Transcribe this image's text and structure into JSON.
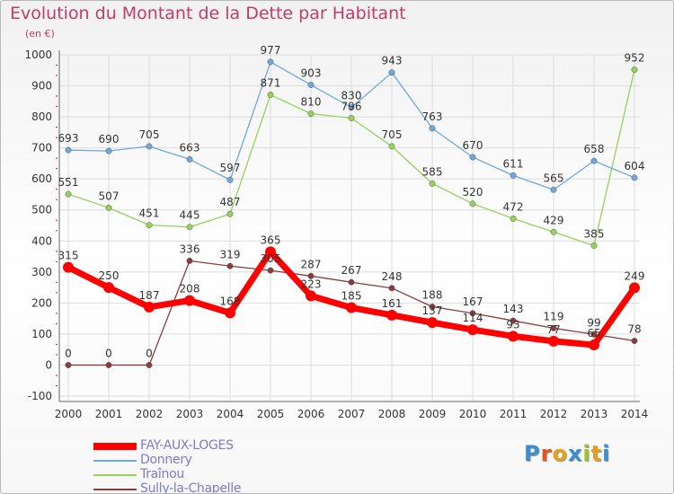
{
  "header": {
    "title": "Evolution du Montant de la Dette par Habitant",
    "subtitle": "(en €)"
  },
  "logo": {
    "text": "Proxiti",
    "colors": [
      "#3c8ed0",
      "#e2571d",
      "#e2a21d",
      "#3c8ed0",
      "#9bc52a",
      "#e2a21d",
      "#3c8ed0"
    ]
  },
  "colors": {
    "title": "#c33a6b",
    "axis": "#666666",
    "grid": "#dcdcdc",
    "tick_marks": "#d3143d",
    "legend_text": "#7c7cc9"
  },
  "chart_data": {
    "type": "line",
    "title": "Evolution du Montant de la Dette par Habitant",
    "xlabel": "",
    "ylabel": "(en €)",
    "x": [
      "2000",
      "2001",
      "2002",
      "2003",
      "2004",
      "2005",
      "2006",
      "2007",
      "2008",
      "2009",
      "2010",
      "2011",
      "2012",
      "2013",
      "2014"
    ],
    "ylim": [
      -100,
      1000
    ],
    "yticks": [
      "-100",
      "0",
      "100",
      "200",
      "300",
      "400",
      "500",
      "600",
      "700",
      "800",
      "900",
      "1000"
    ],
    "grid": true,
    "legend_position": "bottom-left",
    "series": [
      {
        "name": "FAY-AUX-LOGES",
        "color": "#ff0000",
        "values": [
          315,
          250,
          187,
          208,
          168,
          365,
          223,
          185,
          161,
          137,
          114,
          93,
          77,
          65,
          249
        ],
        "labels": [
          "315",
          "250",
          "187",
          "208",
          "168",
          "365",
          "223",
          "185",
          "161",
          "137",
          "114",
          "93",
          "77",
          "65",
          "249"
        ]
      },
      {
        "name": "Donnery",
        "color": "#6fa8dc",
        "values": [
          693,
          690,
          705,
          663,
          597,
          977,
          903,
          830,
          943,
          763,
          670,
          611,
          565,
          658,
          604
        ],
        "labels": [
          "693",
          "690",
          "705",
          "663",
          "597",
          "977",
          "903",
          "830",
          "943",
          "763",
          "670",
          "611",
          "565",
          "658",
          "604"
        ]
      },
      {
        "name": "Traînou",
        "color": "#93d35a",
        "values": [
          551,
          507,
          451,
          445,
          487,
          871,
          810,
          796,
          705,
          585,
          520,
          472,
          429,
          385,
          952
        ],
        "labels": [
          "551",
          "507",
          "451",
          "445",
          "487",
          "871",
          "810",
          "796",
          "705",
          "585",
          "520",
          "472",
          "429",
          "385",
          "952"
        ]
      },
      {
        "name": "Sully-la-Chapelle",
        "color": "#8a3c3c",
        "values": [
          0,
          0,
          0,
          336,
          319,
          305,
          287,
          267,
          248,
          188,
          167,
          143,
          119,
          99,
          78
        ],
        "labels": [
          "0",
          "0",
          "0",
          "336",
          "319",
          "305",
          "287",
          "267",
          "248",
          "188",
          "167",
          "143",
          "119",
          "99",
          "78"
        ]
      }
    ]
  }
}
